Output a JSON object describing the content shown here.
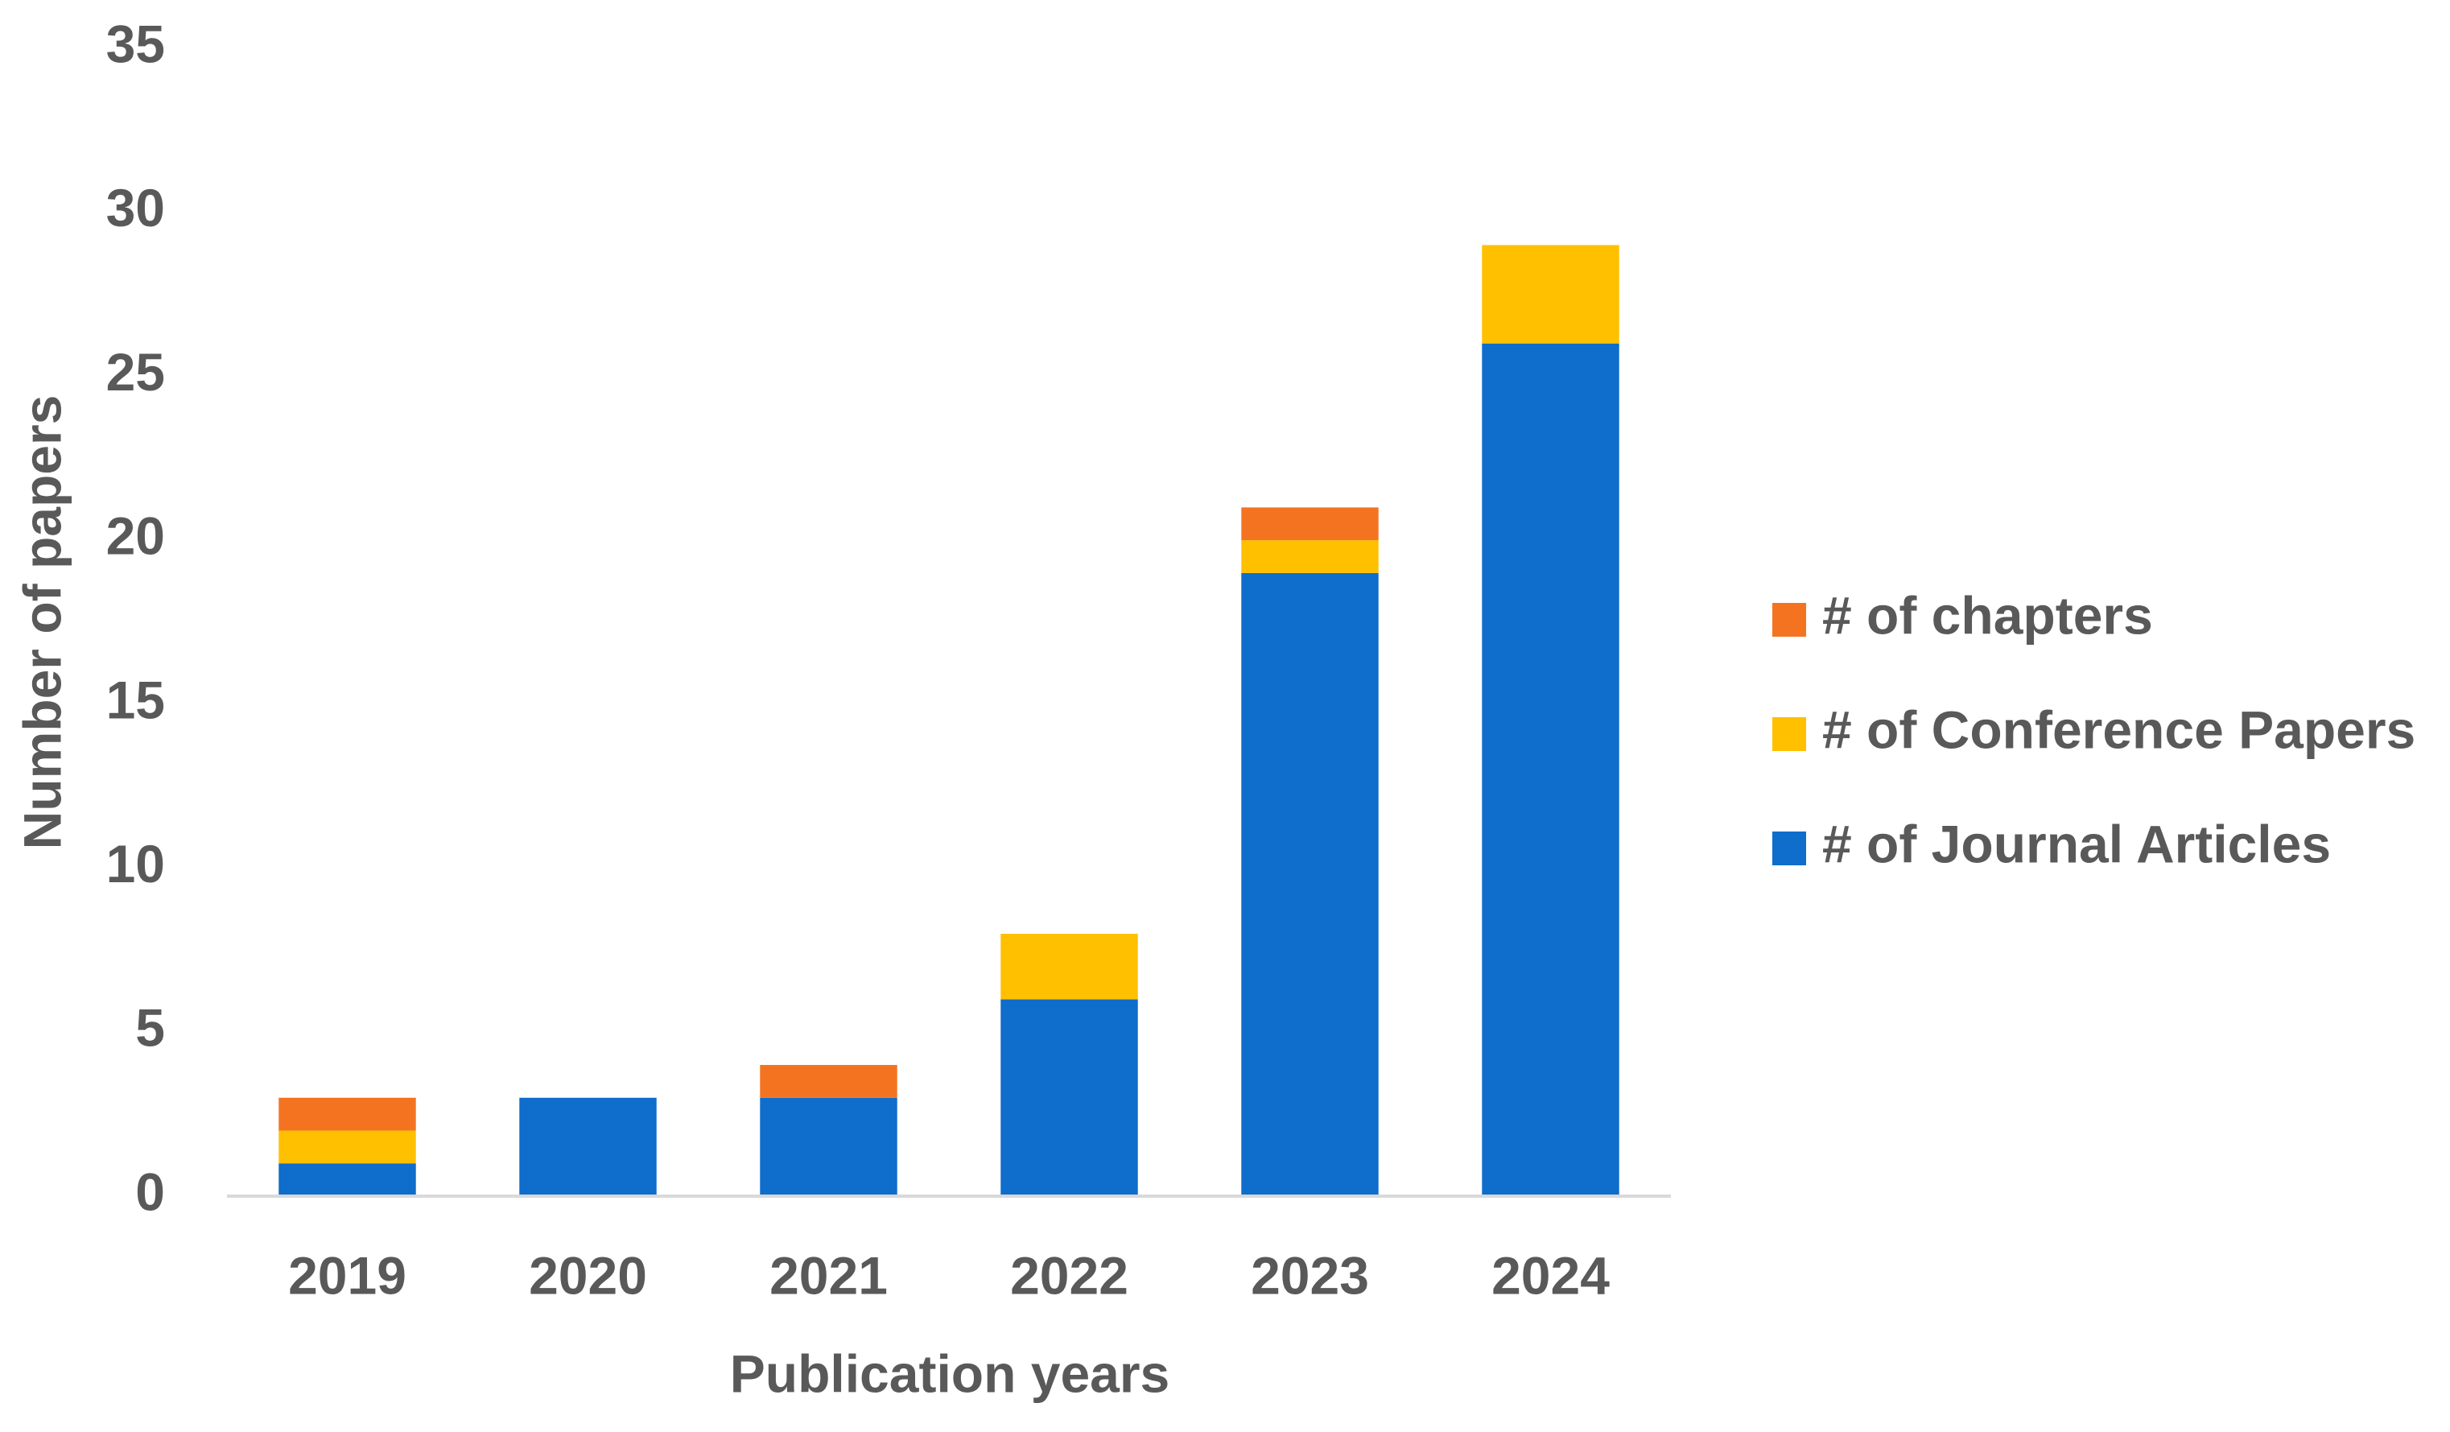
{
  "chart_data": {
    "type": "stacked_bar",
    "x_label": "Publication years",
    "y_label": "Number of papers",
    "categories": [
      "2019",
      "2020",
      "2021",
      "2022",
      "2023",
      "2024"
    ],
    "series": [
      {
        "name": "# of Journal Articles",
        "color": "#0f6dcb",
        "values": [
          1,
          3,
          3,
          6,
          19,
          26
        ]
      },
      {
        "name": "# of Conference Papers",
        "color": "#ffc000",
        "values": [
          1,
          0,
          0,
          2,
          1,
          3
        ]
      },
      {
        "name": "# of chapters",
        "color": "#f47321",
        "values": [
          1,
          0,
          1,
          0,
          1,
          0
        ]
      }
    ],
    "ylim": [
      0,
      35
    ],
    "yticks": [
      0,
      5,
      10,
      15,
      20,
      25,
      30,
      35
    ],
    "grid": false,
    "legend": "right"
  }
}
